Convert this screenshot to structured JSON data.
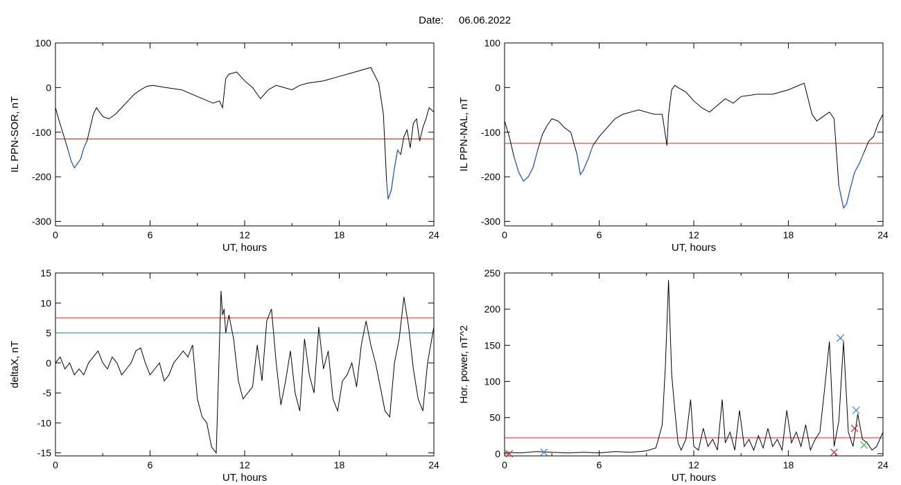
{
  "date_label": "Date:",
  "date_value": "06.06.2022",
  "colors": {
    "line": "#000000",
    "threshold": "#e0201e",
    "below_threshold": "#1f5fd0",
    "second_threshold": "#1f8ea0",
    "marker_blue": "#2f7fd6",
    "marker_red": "#e0201e",
    "marker_green": "#3cbf3c"
  },
  "chart_data": [
    {
      "type": "line",
      "ylabel": "IL PPN-SOR, nT",
      "xlabel": "UT, hours",
      "xlim": [
        0,
        24
      ],
      "ylim": [
        -310,
        100
      ],
      "xticks": [
        "0",
        "6",
        "12",
        "18",
        "24"
      ],
      "yticks": [
        "100",
        "0",
        "-100",
        "-200",
        "-300"
      ],
      "threshold": -115,
      "series": [
        {
          "x": [
            0,
            0.2,
            0.5,
            0.8,
            1.0,
            1.2,
            1.4,
            1.6,
            1.8,
            2.0,
            2.2,
            2.4,
            2.6,
            2.8,
            3.0,
            3.4,
            3.8,
            4.2,
            4.6,
            5.0,
            5.4,
            5.8,
            6.2,
            7.0,
            8.0,
            9.0,
            10.0,
            10.4,
            10.6,
            10.8,
            11.0,
            11.5,
            12.0,
            12.5,
            13.0,
            13.5,
            14.0,
            14.5,
            15.0,
            15.5,
            16.0,
            17.0,
            18.0,
            19.0,
            20.0,
            20.5,
            20.8,
            21.0,
            21.1,
            21.3,
            21.5,
            21.7,
            21.9,
            22.1,
            22.3,
            22.5,
            22.7,
            22.9,
            23.1,
            23.3,
            23.5,
            23.7,
            24.0
          ],
          "values": [
            -45,
            -70,
            -105,
            -140,
            -165,
            -180,
            -170,
            -160,
            -135,
            -120,
            -90,
            -60,
            -45,
            -55,
            -65,
            -70,
            -60,
            -45,
            -30,
            -15,
            -5,
            3,
            5,
            0,
            -5,
            -20,
            -35,
            -30,
            -45,
            20,
            30,
            35,
            15,
            0,
            -25,
            -5,
            5,
            0,
            -5,
            5,
            10,
            15,
            25,
            35,
            45,
            10,
            -60,
            -210,
            -250,
            -230,
            -180,
            -140,
            -150,
            -110,
            -95,
            -135,
            -80,
            -70,
            -120,
            -90,
            -70,
            -45,
            -55
          ]
        }
      ]
    },
    {
      "type": "line",
      "ylabel": "IL PPN-NAL, nT",
      "xlabel": "UT, hours",
      "xlim": [
        0,
        24
      ],
      "ylim": [
        -310,
        100
      ],
      "xticks": [
        "0",
        "6",
        "12",
        "18",
        "24"
      ],
      "yticks": [
        "100",
        "0",
        "-100",
        "-200",
        "-300"
      ],
      "threshold": -125,
      "series": [
        {
          "x": [
            0,
            0.3,
            0.6,
            0.9,
            1.2,
            1.5,
            1.8,
            2.1,
            2.4,
            2.7,
            3.0,
            3.4,
            3.8,
            4.2,
            4.6,
            4.8,
            5.0,
            5.3,
            5.6,
            6.0,
            6.5,
            7.0,
            7.5,
            8.0,
            8.5,
            9.0,
            9.5,
            10.0,
            10.3,
            10.4,
            10.6,
            10.8,
            11.0,
            11.5,
            12.0,
            12.5,
            13.0,
            13.5,
            14.0,
            14.5,
            15.0,
            16.0,
            17.0,
            18.0,
            19.0,
            19.5,
            19.8,
            20.2,
            20.6,
            20.9,
            21.2,
            21.5,
            21.7,
            21.9,
            22.2,
            22.5,
            22.8,
            23.1,
            23.4,
            23.7,
            24.0
          ],
          "values": [
            -75,
            -110,
            -155,
            -190,
            -210,
            -200,
            -180,
            -140,
            -105,
            -85,
            -70,
            -75,
            -90,
            -100,
            -150,
            -195,
            -185,
            -160,
            -130,
            -110,
            -90,
            -70,
            -60,
            -55,
            -50,
            -55,
            -60,
            -60,
            -130,
            -60,
            -5,
            5,
            0,
            -10,
            -30,
            -45,
            -55,
            -40,
            -25,
            -35,
            -20,
            -15,
            -15,
            -5,
            10,
            -60,
            -75,
            -65,
            -55,
            -70,
            -220,
            -270,
            -260,
            -230,
            -190,
            -170,
            -145,
            -120,
            -110,
            -80,
            -60
          ]
        }
      ]
    },
    {
      "type": "line",
      "ylabel": "deltaX, nT",
      "xlabel": "UT, hours",
      "xlim": [
        0,
        24
      ],
      "ylim": [
        -15.5,
        15
      ],
      "xticks": [
        "0",
        "6",
        "12",
        "18",
        "24"
      ],
      "yticks": [
        "15",
        "10",
        "5",
        "0",
        "-5",
        "-10",
        "-15"
      ],
      "threshold": 7.5,
      "threshold_2": 5,
      "series": [
        {
          "x": [
            0,
            0.3,
            0.6,
            0.9,
            1.2,
            1.5,
            1.8,
            2.1,
            2.4,
            2.7,
            3.0,
            3.3,
            3.6,
            3.9,
            4.2,
            4.5,
            4.8,
            5.1,
            5.4,
            5.7,
            6.0,
            6.3,
            6.6,
            6.9,
            7.2,
            7.5,
            7.8,
            8.1,
            8.4,
            8.7,
            9.0,
            9.3,
            9.6,
            9.9,
            10.2,
            10.5,
            10.6,
            10.7,
            10.8,
            11.0,
            11.3,
            11.6,
            11.9,
            12.2,
            12.5,
            12.8,
            13.1,
            13.4,
            13.7,
            14.0,
            14.3,
            14.6,
            14.9,
            15.2,
            15.5,
            15.8,
            16.1,
            16.4,
            16.7,
            17.0,
            17.3,
            17.6,
            17.9,
            18.2,
            18.5,
            18.8,
            19.1,
            19.4,
            19.7,
            20.0,
            20.3,
            20.6,
            20.9,
            21.2,
            21.5,
            21.8,
            22.1,
            22.4,
            22.7,
            23.0,
            23.3,
            23.6,
            24.0
          ],
          "values": [
            0,
            1,
            -1,
            0,
            -2,
            -1,
            -2,
            0,
            1,
            2,
            0,
            -1,
            1,
            0,
            -2,
            -1,
            0,
            2,
            2.5,
            0,
            -2,
            -1,
            0,
            -3,
            -2,
            0,
            1,
            2,
            1,
            3,
            -6,
            -9,
            -10,
            -14,
            -15,
            12,
            8,
            9,
            5,
            8,
            4,
            -3,
            -6,
            -5,
            -4,
            3,
            -3,
            7,
            9,
            0,
            -7,
            -3,
            2,
            -5,
            -8,
            4,
            -2,
            -5,
            6,
            -1,
            2,
            -6,
            -8,
            -3,
            -2,
            0,
            -4,
            3,
            7,
            3,
            0,
            -4,
            -8,
            -9,
            0,
            4,
            11,
            6,
            -1,
            -6,
            -8,
            0,
            6
          ]
        }
      ]
    },
    {
      "type": "line",
      "ylabel": "Hor. power, nT^2",
      "xlabel": "UT, hours",
      "xlim": [
        0,
        24
      ],
      "ylim": [
        -3,
        250
      ],
      "xticks": [
        "0",
        "6",
        "12",
        "18",
        "24"
      ],
      "yticks": [
        "250",
        "200",
        "150",
        "100",
        "50",
        "0"
      ],
      "threshold": 22,
      "series": [
        {
          "x": [
            0,
            1,
            2,
            3,
            4,
            5,
            6,
            7,
            8,
            9,
            9.6,
            10.0,
            10.2,
            10.4,
            10.6,
            10.8,
            11.0,
            11.2,
            11.5,
            11.8,
            12.0,
            12.3,
            12.6,
            12.9,
            13.2,
            13.5,
            13.8,
            14.0,
            14.3,
            14.6,
            14.9,
            15.2,
            15.5,
            15.8,
            16.1,
            16.4,
            16.7,
            17.0,
            17.3,
            17.6,
            17.9,
            18.2,
            18.5,
            18.8,
            19.1,
            19.4,
            19.7,
            20.0,
            20.3,
            20.6,
            20.9,
            21.2,
            21.5,
            21.8,
            22.1,
            22.4,
            22.7,
            23.0,
            23.3,
            23.6,
            24.0
          ],
          "values": [
            2,
            1,
            3,
            2,
            1,
            2,
            1,
            3,
            2,
            4,
            8,
            40,
            120,
            240,
            110,
            60,
            15,
            5,
            20,
            75,
            10,
            5,
            35,
            10,
            20,
            5,
            75,
            15,
            30,
            5,
            60,
            10,
            20,
            5,
            25,
            8,
            35,
            10,
            20,
            5,
            60,
            15,
            30,
            10,
            40,
            5,
            20,
            30,
            90,
            155,
            10,
            45,
            155,
            30,
            10,
            55,
            20,
            15,
            5,
            10,
            30
          ]
        }
      ],
      "markers": {
        "blue_x": [
          [
            2.5,
            2
          ],
          [
            21.3,
            160
          ],
          [
            22.3,
            60
          ]
        ],
        "red_x": [
          [
            0.3,
            0
          ],
          [
            20.9,
            2
          ],
          [
            22.2,
            35
          ]
        ],
        "green_x": [
          [
            22.8,
            12
          ]
        ]
      }
    }
  ]
}
